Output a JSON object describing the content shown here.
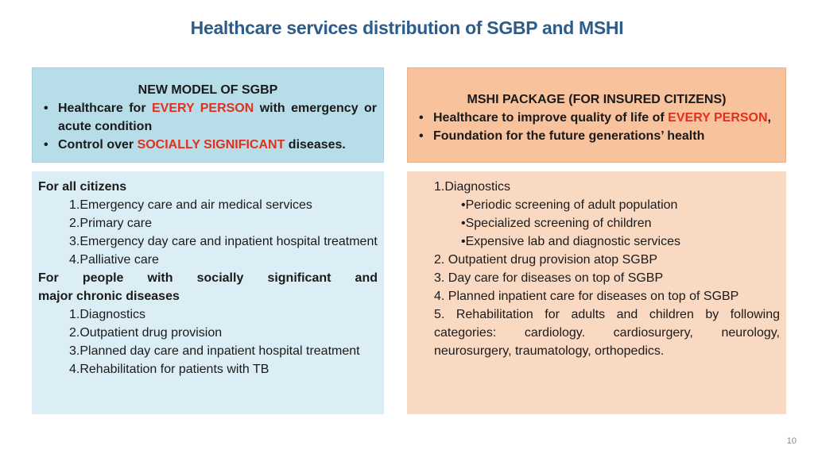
{
  "title": "Healthcare services distribution of SGBP and MSHI",
  "sgbp_head": {
    "title": "NEW MODEL OF SGBP",
    "bullet1": {
      "pre": "Healthcare for ",
      "highlight": "EVERY PERSON",
      "post": " with emergency or acute condition"
    },
    "bullet2": {
      "pre": "Control over ",
      "highlight": "SOCIALLY SIGNIFICANT",
      "post": " diseases."
    }
  },
  "mshi_head": {
    "title": "MSHI PACKAGE (FOR INSURED CITIZENS)",
    "bullet1": {
      "pre": "Healthcare to improve quality of life of ",
      "highlight": "EVERY PERSON",
      "post": ","
    },
    "bullet2": "Foundation for the future generations’ health"
  },
  "sgbp_body": {
    "group1_title": "For all citizens",
    "group1_items": [
      "1.Emergency care and air medical services",
      "2.Primary care",
      "3.Emergency day care and inpatient hospital treatment",
      "4.Palliative care"
    ],
    "group2_title_line1": "For people with socially significant and",
    "group2_title_line2": "major chronic diseases",
    "group2_items": [
      "1.Diagnostics",
      "2.Outpatient drug provision",
      "3.Planned day care and inpatient hospital treatment",
      "4.Rehabilitation for patients with TB"
    ]
  },
  "mshi_body": {
    "item1": "1.Diagnostics",
    "item1_sub": [
      "•Periodic screening of adult population",
      "•Specialized screening of children",
      "•Expensive lab and diagnostic services"
    ],
    "item2": "2. Outpatient drug provision atop SGBP",
    "item3": "3. Day care for diseases on top of SGBP",
    "item4": "4. Planned inpatient care for diseases on top of SGBP",
    "item5_line1": "5. Rehabilitation for adults and children by following",
    "item5_line2": "categories: cardiology. cardiosurgery, neurology,",
    "item5_line3": "neurosurgery, traumatology, orthopedics."
  },
  "page_number": "10"
}
